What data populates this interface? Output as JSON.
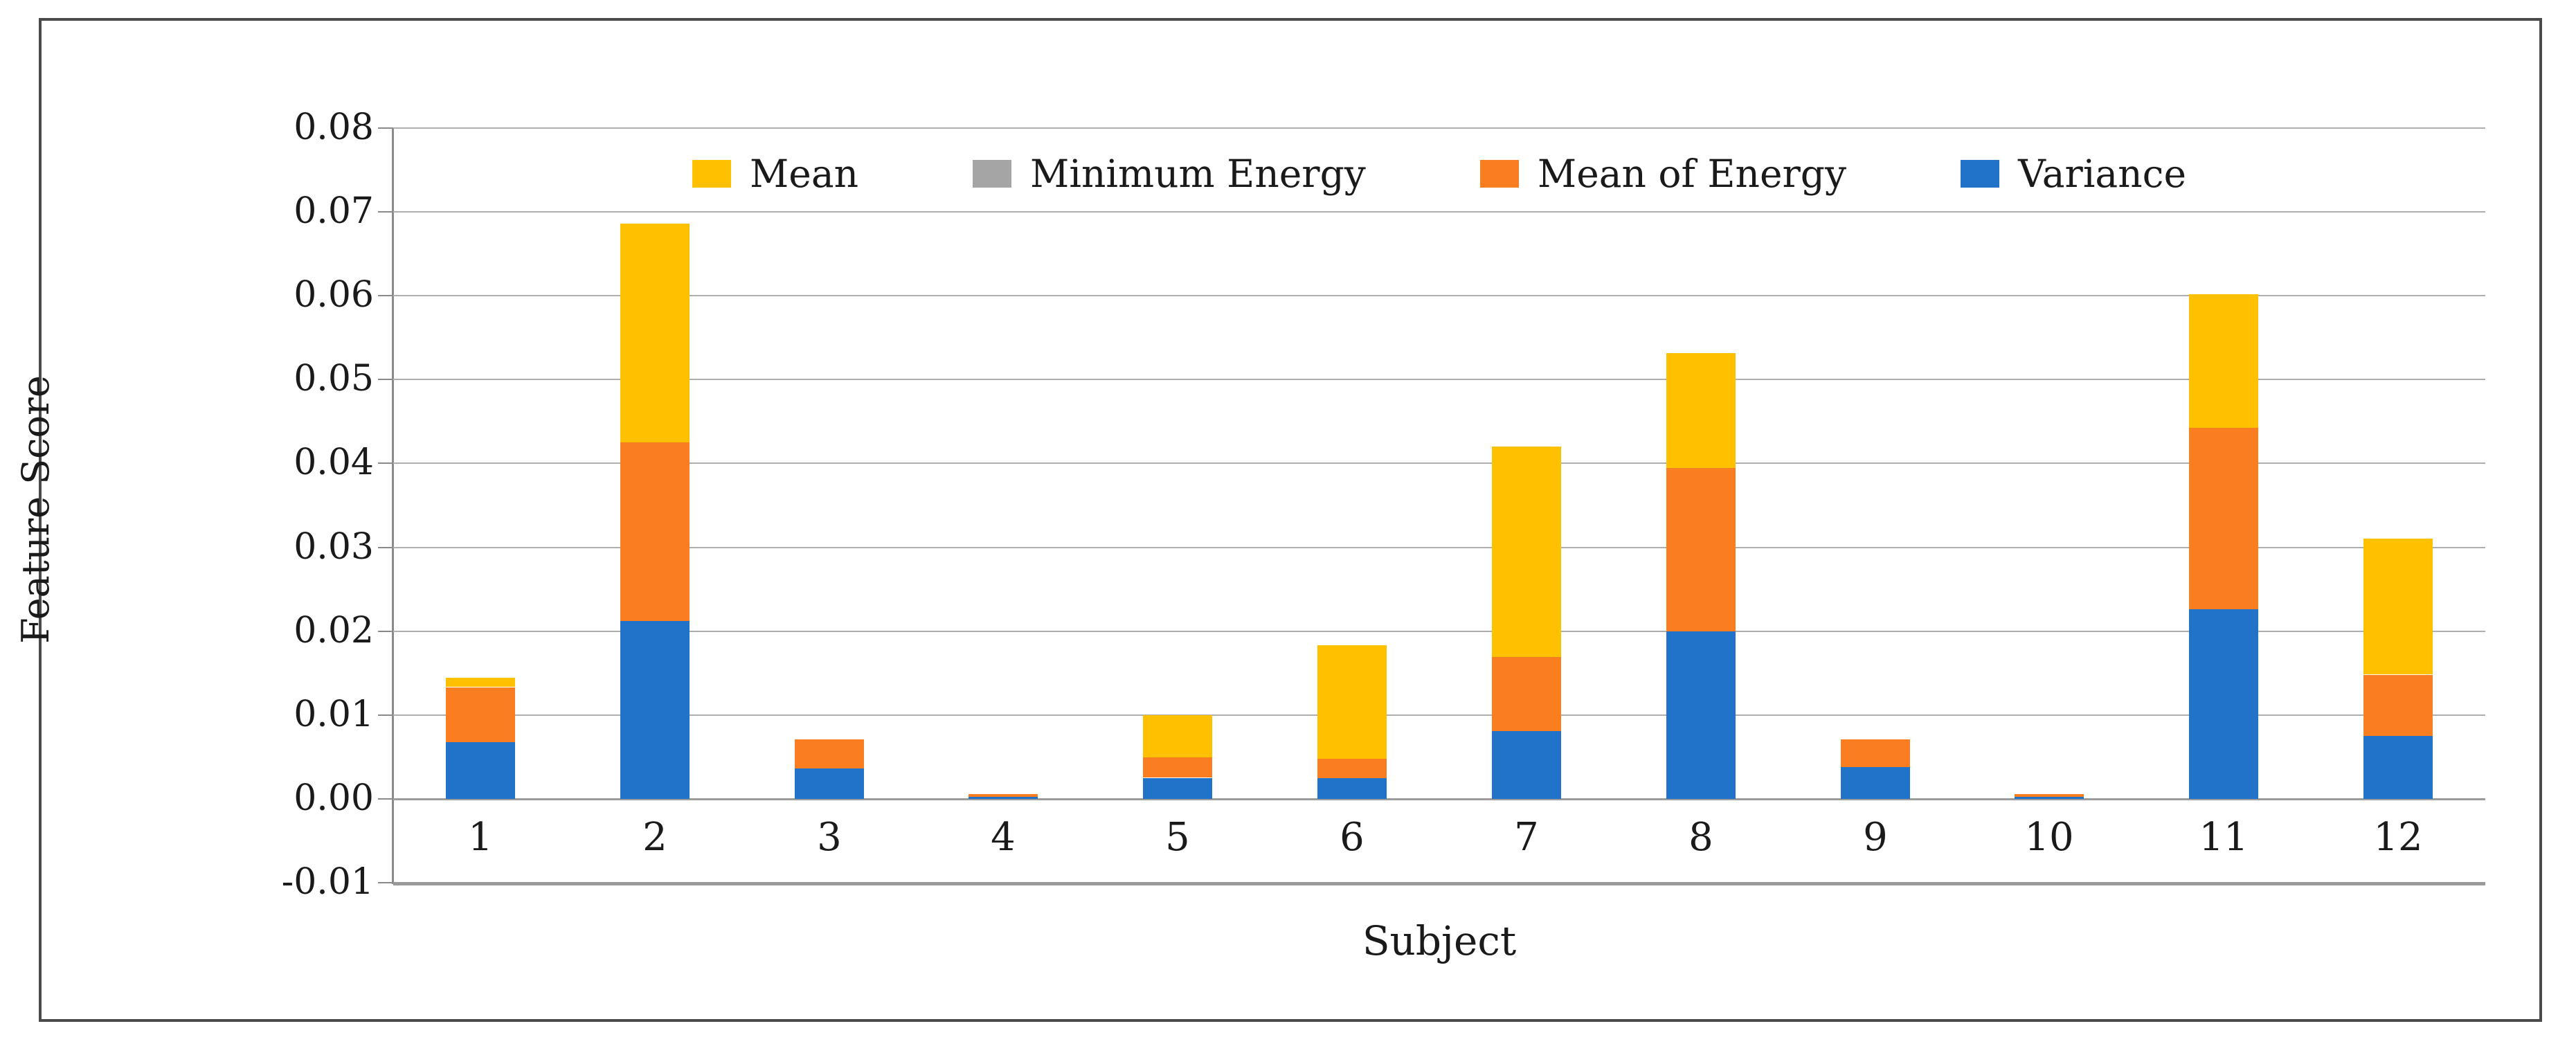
{
  "figure": {
    "background": "#ffffff",
    "border_color": "#4a4a4a",
    "gridline_color": "#aeaeae",
    "axis_line_color": "#8a8a8a",
    "text_color": "#1a1a1a"
  },
  "y_axis": {
    "title": "Feature Score",
    "tick_labels": [
      "0.08",
      "0.07",
      "0.06",
      "0.05",
      "0.04",
      "0.03",
      "0.02",
      "0.01",
      "0.00",
      "-0.01"
    ],
    "tick_values": [
      0.08,
      0.07,
      0.06,
      0.05,
      0.04,
      0.03,
      0.02,
      0.01,
      0.0,
      -0.01
    ]
  },
  "x_axis": {
    "title": "Subject",
    "labels": [
      "1",
      "2",
      "3",
      "4",
      "5",
      "6",
      "7",
      "8",
      "9",
      "10",
      "11",
      "12"
    ]
  },
  "legend": [
    {
      "label": "Mean",
      "color": "#FFC000"
    },
    {
      "label": "Minimum Energy",
      "color": "#A5A5A5"
    },
    {
      "label": "Mean of Energy",
      "color": "#FA7D1F"
    },
    {
      "label": "Variance",
      "color": "#2073C8"
    }
  ],
  "chart_data": {
    "type": "bar",
    "stacked": true,
    "title": "",
    "xlabel": "Subject",
    "ylabel": "Feature Score",
    "ylim": [
      -0.01,
      0.08
    ],
    "ytick_step": 0.01,
    "grid": true,
    "legend_position": "top-center-inside",
    "categories": [
      "1",
      "2",
      "3",
      "4",
      "5",
      "6",
      "7",
      "8",
      "9",
      "10",
      "11",
      "12"
    ],
    "stack_order_bottom_to_top": [
      "Variance",
      "Mean of Energy",
      "Minimum Energy",
      "Mean"
    ],
    "series": [
      {
        "name": "Variance",
        "color": "#2073C8",
        "values": [
          0.0068,
          0.0212,
          0.0036,
          0.0003,
          0.0025,
          0.0025,
          0.0081,
          0.02,
          0.0038,
          0.0003,
          0.0226,
          0.0075
        ]
      },
      {
        "name": "Mean of Energy",
        "color": "#FA7D1F",
        "values": [
          0.0065,
          0.0213,
          0.0035,
          0.0003,
          0.0025,
          0.0023,
          0.0088,
          0.0195,
          0.0033,
          0.0003,
          0.0217,
          0.0073
        ]
      },
      {
        "name": "Minimum Energy",
        "color": "#A5A5A5",
        "values": [
          0.0,
          0.0,
          0.0,
          0.0,
          0.0,
          0.0,
          0.0,
          0.0,
          0.0,
          0.0,
          0.0,
          0.0
        ]
      },
      {
        "name": "Mean",
        "color": "#FFC000",
        "values": [
          0.0011,
          0.0261,
          0.0,
          0.0,
          0.005,
          0.0135,
          0.0251,
          0.0137,
          0.0,
          0.0,
          0.0159,
          0.0162
        ]
      }
    ],
    "totals": [
      0.0144,
      0.0686,
      0.0071,
      0.0006,
      0.01,
      0.0183,
      0.042,
      0.0532,
      0.0071,
      0.0006,
      0.0602,
      0.031
    ]
  }
}
